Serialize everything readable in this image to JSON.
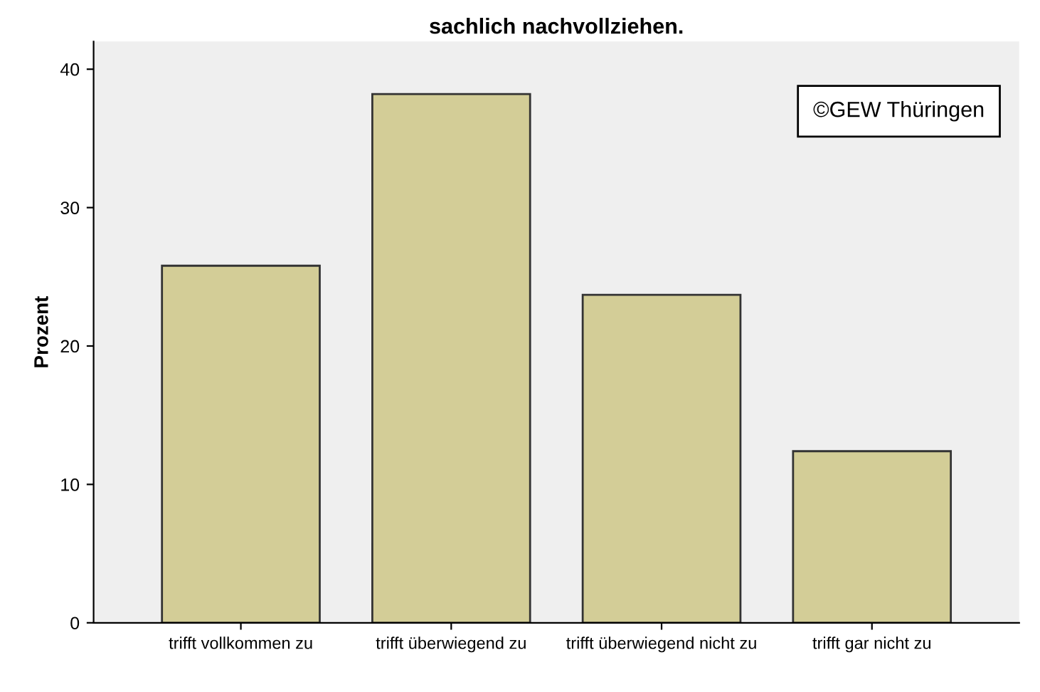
{
  "chart_data": {
    "type": "bar",
    "title": "sachlich nachvollziehen.",
    "ylabel": "Prozent",
    "categories": [
      "trifft vollkommen zu",
      "trifft überwiegend zu",
      "trifft überwiegend nicht zu",
      "trifft gar nicht zu"
    ],
    "values": [
      25.8,
      38.2,
      23.7,
      12.4
    ],
    "color": "#d3cd97",
    "ylim": [
      0,
      42
    ],
    "yticks": [
      0,
      10,
      20,
      30,
      40
    ],
    "grid": false,
    "annotations": [
      "©GEW Thüringen"
    ]
  }
}
